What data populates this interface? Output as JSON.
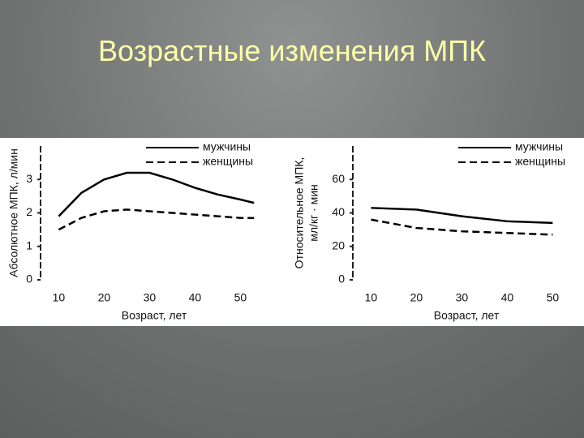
{
  "slide_title": "Возрастные изменения МПК",
  "chart_data": [
    {
      "type": "line",
      "ylabel": "Абсолютное МПК, л/мин",
      "xlabel": "Возраст, лет",
      "x": [
        10,
        15,
        20,
        25,
        30,
        35,
        40,
        45,
        50,
        53
      ],
      "series": [
        {
          "name": "мужчины",
          "color": "#000000",
          "dash": false,
          "values": [
            1.9,
            2.6,
            3.0,
            3.2,
            3.2,
            3.0,
            2.75,
            2.55,
            2.4,
            2.3
          ]
        },
        {
          "name": "женщины",
          "color": "#000000",
          "dash": true,
          "values": [
            1.5,
            1.85,
            2.05,
            2.1,
            2.05,
            2.0,
            1.95,
            1.9,
            1.85,
            1.85
          ]
        }
      ],
      "xlim": [
        6,
        56
      ],
      "ylim": [
        0,
        4
      ],
      "xticks": [
        10,
        20,
        30,
        40,
        50
      ],
      "yticks": [
        0,
        1,
        2,
        3
      ],
      "legend": "upper right"
    },
    {
      "type": "line",
      "ylabel": [
        "Относительное МПК,",
        "мл/кг · мин"
      ],
      "xlabel": "Возраст, лет",
      "x": [
        10,
        20,
        30,
        40,
        50
      ],
      "series": [
        {
          "name": "мужчины",
          "color": "#000000",
          "dash": false,
          "values": [
            43,
            42,
            38,
            35,
            34
          ]
        },
        {
          "name": "женщины",
          "color": "#000000",
          "dash": true,
          "values": [
            36,
            31,
            29,
            28,
            27
          ]
        }
      ],
      "xlim": [
        6,
        56
      ],
      "ylim": [
        0,
        80
      ],
      "xticks": [
        10,
        20,
        30,
        40,
        50
      ],
      "yticks": [
        0,
        20,
        40,
        60
      ],
      "legend": "upper right"
    }
  ]
}
